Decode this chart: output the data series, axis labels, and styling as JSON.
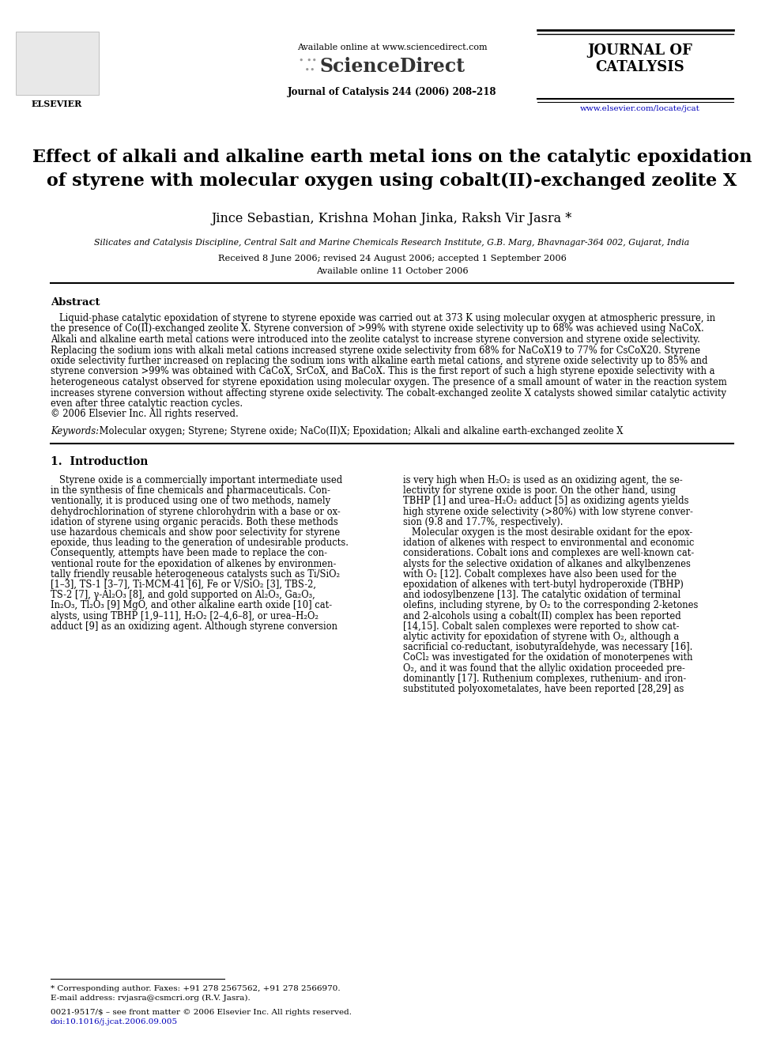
{
  "page_width": 9.92,
  "page_height": 13.23,
  "bg_color": "#ffffff",
  "header": {
    "available_online_text": "Available online at www.sciencedirect.com",
    "sciencedirect_text": "ScienceDirect",
    "journal_name_line1": "JOURNAL OF",
    "journal_name_line2": "CATALYSIS",
    "journal_cite": "Journal of Catalysis 244 (2006) 208–218",
    "website_text": "www.elsevier.com/locate/jcat",
    "website_color": "#0000bb"
  },
  "title_line1": "Effect of alkali and alkaline earth metal ions on the catalytic epoxidation",
  "title_line2": "of styrene with molecular oxygen using cobalt(II)-exchanged zeolite X",
  "authors_text": "Jince Sebastian, Krishna Mohan Jinka, Raksh Vir Jasra *",
  "affiliation_text": "Silicates and Catalysis Discipline, Central Salt and Marine Chemicals Research Institute, G.B. Marg, Bhavnagar-364 002, Gujarat, India",
  "received_text": "Received 8 June 2006; revised 24 August 2006; accepted 1 September 2006",
  "available_text": "Available online 11 October 2006",
  "abstract_title": "Abstract",
  "abstract_body_lines": [
    "   Liquid-phase catalytic epoxidation of styrene to styrene epoxide was carried out at 373 K using molecular oxygen at atmospheric pressure, in",
    "the presence of Co(II)-exchanged zeolite X. Styrene conversion of >99% with styrene oxide selectivity up to 68% was achieved using NaCoX.",
    "Alkali and alkaline earth metal cations were introduced into the zeolite catalyst to increase styrene conversion and styrene oxide selectivity.",
    "Replacing the sodium ions with alkali metal cations increased styrene oxide selectivity from 68% for NaCoX19 to 77% for CsCoX20. Styrene",
    "oxide selectivity further increased on replacing the sodium ions with alkaline earth metal cations, and styrene oxide selectivity up to 85% and",
    "styrene conversion >99% was obtained with CaCoX, SrCoX, and BaCoX. This is the first report of such a high styrene epoxide selectivity with a",
    "heterogeneous catalyst observed for styrene epoxidation using molecular oxygen. The presence of a small amount of water in the reaction system",
    "increases styrene conversion without affecting styrene oxide selectivity. The cobalt-exchanged zeolite X catalysts showed similar catalytic activity",
    "even after three catalytic reaction cycles.",
    "© 2006 Elsevier Inc. All rights reserved."
  ],
  "keywords_italic": "Keywords:",
  "keywords_rest": " Molecular oxygen; Styrene; Styrene oxide; NaCo(II)X; Epoxidation; Alkali and alkaline earth-exchanged zeolite X",
  "intro_title": "1.  Introduction",
  "intro_col1_lines": [
    "   Styrene oxide is a commercially important intermediate used",
    "in the synthesis of fine chemicals and pharmaceuticals. Con-",
    "ventionally, it is produced using one of two methods, namely",
    "dehydrochlorination of styrene chlorohydrin with a base or ox-",
    "idation of styrene using organic peracids. Both these methods",
    "use hazardous chemicals and show poor selectivity for styrene",
    "epoxide, thus leading to the generation of undesirable products.",
    "Consequently, attempts have been made to replace the con-",
    "ventional route for the epoxidation of alkenes by environmen-",
    "tally friendly reusable heterogeneous catalysts such as Ti/SiO₂",
    "[1–3], TS-1 [3–7], Ti-MCM-41 [6], Fe or V/SiO₂ [3], TBS-2,",
    "TS-2 [7], γ-Al₂O₃ [8], and gold supported on Al₂O₃, Ga₂O₃,",
    "In₂O₃, Tl₂O₃ [9] MgO, and other alkaline earth oxide [10] cat-",
    "alysts, using TBHP [1,9–11], H₂O₂ [2–4,6–8], or urea–H₂O₂",
    "adduct [9] as an oxidizing agent. Although styrene conversion"
  ],
  "intro_col2_lines": [
    "is very high when H₂O₂ is used as an oxidizing agent, the se-",
    "lectivity for styrene oxide is poor. On the other hand, using",
    "TBHP [1] and urea–H₂O₂ adduct [5] as oxidizing agents yields",
    "high styrene oxide selectivity (>80%) with low styrene conver-",
    "sion (9.8 and 17.7%, respectively).",
    "   Molecular oxygen is the most desirable oxidant for the epox-",
    "idation of alkenes with respect to environmental and economic",
    "considerations. Cobalt ions and complexes are well-known cat-",
    "alysts for the selective oxidation of alkanes and alkylbenzenes",
    "with O₂ [12]. Cobalt complexes have also been used for the",
    "epoxidation of alkenes with tert-butyl hydroperoxide (TBHP)",
    "and iodosylbenzene [13]. The catalytic oxidation of terminal",
    "olefins, including styrene, by O₂ to the corresponding 2-ketones",
    "and 2-alcohols using a cobalt(II) complex has been reported",
    "[14,15]. Cobalt salen complexes were reported to show cat-",
    "alytic activity for epoxidation of styrene with O₂, although a",
    "sacrificial co-reductant, isobutyraldehyde, was necessary [16].",
    "CoCl₂ was investigated for the oxidation of monoterpenes with",
    "O₂, and it was found that the allylic oxidation proceeded pre-",
    "dominantly [17]. Ruthenium complexes, ruthenium- and iron-",
    "substituted polyoxometalates, have been reported [28,29] as"
  ],
  "footnote_lines": [
    "* Corresponding author. Faxes: +91 278 2567562, +91 278 2566970.",
    "E-mail address: rvjasra@csmcri.org (R.V. Jasra).",
    "0021-9517/$ – see front matter © 2006 Elsevier Inc. All rights reserved.",
    "doi:10.1016/j.jcat.2006.09.005"
  ],
  "doi_color": "#0000bb"
}
